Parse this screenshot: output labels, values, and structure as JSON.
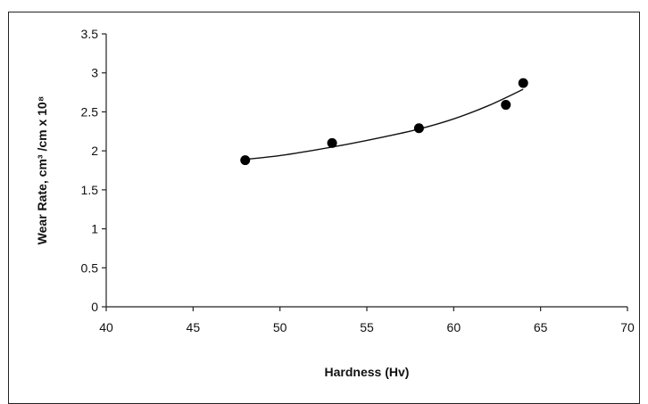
{
  "chart_data": {
    "type": "scatter",
    "title": "",
    "xlabel": "Hardness (Hv)",
    "ylabel": "Wear Rate, cm³ /cm x 10⁸",
    "xlim": [
      40,
      70
    ],
    "ylim": [
      0,
      3.5
    ],
    "xticks": [
      "40",
      "45",
      "50",
      "55",
      "60",
      "65",
      "70"
    ],
    "yticks": [
      "0",
      "0.5",
      "1",
      "1.5",
      "2",
      "2.5",
      "3",
      "3.5"
    ],
    "grid": false,
    "legend": "none",
    "series": [
      {
        "points": [
          {
            "x": 48,
            "y": 1.88
          },
          {
            "x": 53,
            "y": 2.1
          },
          {
            "x": 58,
            "y": 2.29
          },
          {
            "x": 63,
            "y": 2.59
          },
          {
            "x": 64,
            "y": 2.87
          }
        ]
      }
    ],
    "trendline": {
      "kind": "polynomial",
      "x": [
        48,
        50,
        52,
        54,
        56,
        58,
        60,
        62,
        64
      ],
      "y": [
        1.89,
        1.94,
        2.01,
        2.09,
        2.18,
        2.28,
        2.41,
        2.58,
        2.79
      ]
    },
    "colors": {
      "marker": "#000000",
      "axis": "#222222",
      "trendline": "#111111"
    }
  }
}
